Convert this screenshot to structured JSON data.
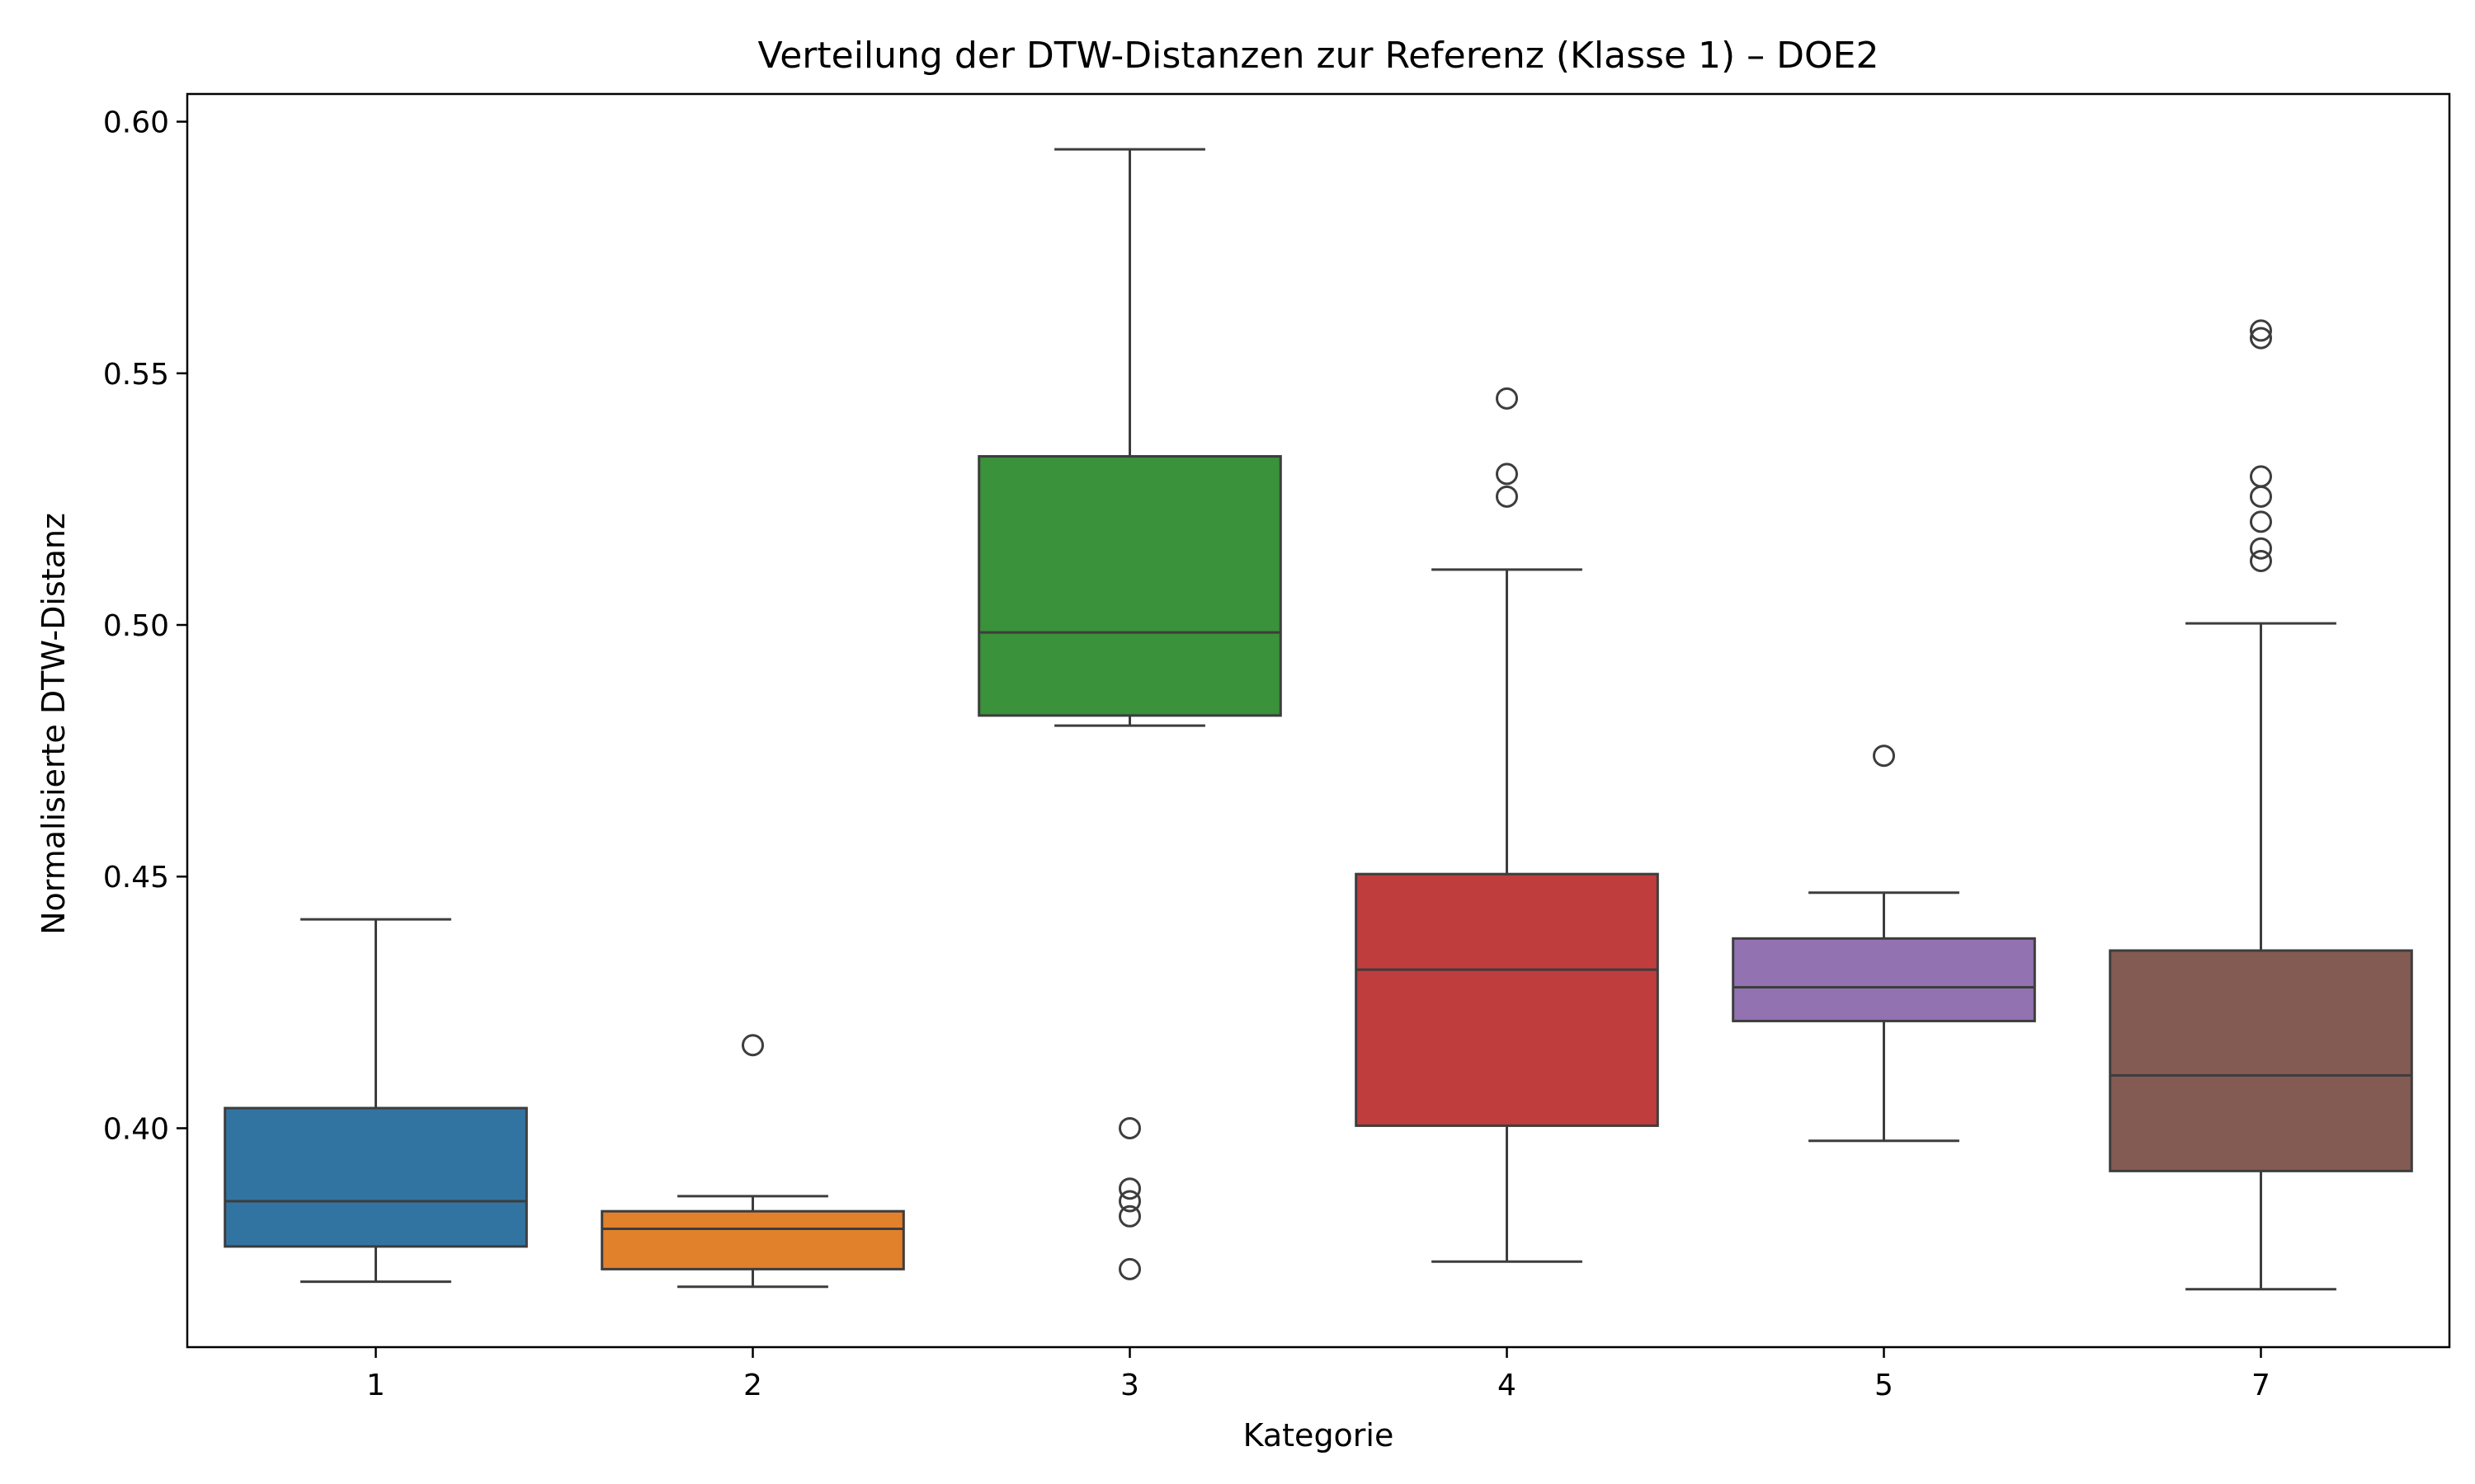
{
  "chart_data": {
    "type": "boxplot",
    "title": "Verteilung der DTW-Distanzen zur Referenz (Klasse 1) – DOE2",
    "xlabel": "Kategorie",
    "ylabel": "Normalisierte DTW-Distanz",
    "ylim": [
      0.3565,
      0.6055
    ],
    "yticks": [
      0.4,
      0.45,
      0.5,
      0.55,
      0.6
    ],
    "ytick_labels": [
      "0.40",
      "0.45",
      "0.50",
      "0.55",
      "0.60"
    ],
    "grid": false,
    "legend": "none",
    "categories": [
      "1",
      "2",
      "3",
      "4",
      "5",
      "7"
    ],
    "boxes": [
      {
        "category": "1",
        "color": "#3274a1",
        "whisker_low": 0.3695,
        "q1": 0.3765,
        "median": 0.3855,
        "q3": 0.404,
        "whisker_high": 0.4415,
        "outliers": []
      },
      {
        "category": "2",
        "color": "#e1812c",
        "whisker_low": 0.3685,
        "q1": 0.372,
        "median": 0.38,
        "q3": 0.3835,
        "whisker_high": 0.3865,
        "outliers": [
          0.4165
        ]
      },
      {
        "category": "3",
        "color": "#3a923a",
        "whisker_low": 0.48,
        "q1": 0.482,
        "median": 0.4985,
        "q3": 0.5335,
        "whisker_high": 0.5945,
        "outliers": [
          0.4,
          0.388,
          0.3855,
          0.3825,
          0.372
        ]
      },
      {
        "category": "4",
        "color": "#c03d3e",
        "whisker_low": 0.3735,
        "q1": 0.4005,
        "median": 0.4315,
        "q3": 0.4505,
        "whisker_high": 0.511,
        "outliers": [
          0.545,
          0.53,
          0.5255
        ]
      },
      {
        "category": "5",
        "color": "#9372b2",
        "whisker_low": 0.3975,
        "q1": 0.4213,
        "median": 0.428,
        "q3": 0.4377,
        "whisker_high": 0.4468,
        "outliers": [
          0.474
        ]
      },
      {
        "category": "7",
        "color": "#845b53",
        "whisker_low": 0.368,
        "q1": 0.3915,
        "median": 0.4105,
        "q3": 0.4353,
        "whisker_high": 0.5003,
        "outliers": [
          0.5585,
          0.557,
          0.5295,
          0.5255,
          0.5205,
          0.5152,
          0.5127
        ]
      }
    ]
  }
}
